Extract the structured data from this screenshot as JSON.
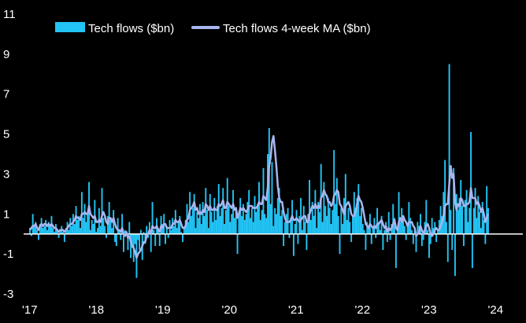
{
  "chart_data": {
    "type": "bar",
    "series": [
      {
        "name": "Tech flows ($bn)",
        "color": "#22C4F5",
        "style": "bars"
      },
      {
        "name": "Tech flows 4-week MA ($bn)",
        "color": "#A8B6F0",
        "style": "line"
      }
    ],
    "x_ticks": [
      "'17",
      "'18",
      "'19",
      "'20",
      "'21",
      "'22",
      "'23",
      "'24"
    ],
    "x_range": [
      2017.0,
      2024.1
    ],
    "y_ticks": [
      11,
      9,
      7,
      5,
      3,
      1,
      -1,
      -3
    ],
    "ylim": [
      -3,
      11
    ],
    "legend_position": "top-left",
    "zero_line": true,
    "bar_values": [
      0.3,
      -0.1,
      1.0,
      0.4,
      0.6,
      0.2,
      -0.3,
      0.5,
      0.8,
      0.3,
      0.4,
      0.7,
      0.2,
      0.6,
      0.4,
      0.9,
      0.3,
      0.1,
      0.5,
      0.2,
      -0.2,
      0.2,
      0.4,
      0.1,
      -0.4,
      0.3,
      0.6,
      0.2,
      0.8,
      0.4,
      1.0,
      0.5,
      1.4,
      0.7,
      0.9,
      0.3,
      2.1,
      0.8,
      1.5,
      0.6,
      1.0,
      2.6,
      0.2,
      0.7,
      0.5,
      1.7,
      0.1,
      0.3,
      1.3,
      0.4,
      2.3,
      0.8,
      0.4,
      -0.2,
      0.9,
      1.6,
      0.7,
      0.3,
      1.2,
      -0.4,
      -0.6,
      0.8,
      0.2,
      -0.3,
      1.0,
      -0.9,
      0.2,
      -0.1,
      -0.8,
      0.6,
      -1.2,
      -0.7,
      -1.4,
      -0.5,
      -2.2,
      -0.3,
      -0.8,
      0.2,
      -1.3,
      0.1,
      -0.5,
      0.4,
      -0.2,
      0.6,
      -0.9,
      1.6,
      0.2,
      -0.6,
      0.8,
      0.3,
      -0.6,
      0.9,
      0.5,
      1.0,
      -0.5,
      0.4,
      -0.2,
      0.7,
      0.2,
      0.8,
      0.4,
      1.2,
      0.3,
      0.6,
      0.9,
      0.1,
      -0.4,
      0.3,
      0.7,
      1.5,
      0.6,
      2.1,
      0.9,
      1.3,
      2.0,
      0.3,
      1.1,
      0.8,
      1.5,
      0.5,
      1.6,
      0.9,
      2.3,
      1.2,
      0.3,
      2.0,
      1.1,
      0.6,
      1.8,
      0.7,
      1.4,
      2.5,
      0.9,
      1.3,
      2.3,
      0.5,
      1.2,
      2.8,
      1.4,
      0.6,
      1.0,
      2.2,
      0.8,
      1.3,
      -1.0,
      1.1,
      1.8,
      0.9,
      1.5,
      0.7,
      1.0,
      1.6,
      2.2,
      0.8,
      1.3,
      0.6,
      1.9,
      1.1,
      1.5,
      2.6,
      0.7,
      1.2,
      3.3,
      1.0,
      0.8,
      4.0,
      5.3,
      1.5,
      3.6,
      0.4,
      1.3,
      1.0,
      1.8,
      2.3,
      0.9,
      1.2,
      -0.6,
      0.6,
      1.0,
      1.3,
      -0.2,
      0.8,
      1.7,
      -1.1,
      0.5,
      1.2,
      -0.5,
      0.9,
      1.8,
      0.2,
      1.4,
      0.6,
      -0.8,
      1.0,
      2.7,
      0.7,
      1.6,
      0.9,
      2.2,
      0.3,
      1.6,
      1.1,
      3.5,
      0.6,
      2.6,
      1.4,
      0.9,
      1.8,
      1.3,
      0.5,
      1.2,
      4.2,
      1.5,
      2.8,
      0.9,
      -1.0,
      1.3,
      0.5,
      1.8,
      3.0,
      0.7,
      1.3,
      0.6,
      -0.4,
      0.9,
      2.1,
      1.3,
      1.8,
      2.5,
      0.9,
      1.3,
      0.5,
      0.2,
      -0.8,
      0.6,
      0.4,
      1.0,
      -0.5,
      0.3,
      0.8,
      -0.2,
      1.3,
      0.6,
      0.2,
      0.9,
      -0.8,
      0.2,
      0.6,
      -0.4,
      1.1,
      -0.3,
      0.5,
      1.5,
      0.8,
      -1.7,
      0.3,
      2.1,
      0.6,
      1.3,
      0.9,
      0.4,
      -0.3,
      0.5,
      1.6,
      0.8,
      0.2,
      -0.5,
      0.3,
      -0.9,
      0.6,
      0.4,
      1.0,
      -0.6,
      -0.3,
      0.6,
      1.7,
      0.2,
      -1.2,
      -0.5,
      0.8,
      0.3,
      0.6,
      -0.4,
      0.2,
      0.7,
      1.4,
      0.9,
      2.1,
      3.7,
      0.6,
      -1.4,
      8.5,
      1.2,
      -0.8,
      3.3,
      -2.1,
      2.0,
      1.2,
      1.8,
      2.7,
      1.4,
      -0.6,
      1.7,
      2.2,
      0.6,
      1.3,
      5.1,
      -1.7,
      1.3,
      2.3,
      0.8,
      1.9,
      1.1,
      0.3,
      1.6,
      0.7,
      -0.5,
      2.4,
      1.3
    ],
    "ma_values": [
      0.2,
      0.3,
      0.4,
      0.4,
      0.5,
      0.3,
      0.2,
      0.4,
      0.5,
      0.4,
      0.5,
      0.5,
      0.4,
      0.5,
      0.4,
      0.5,
      0.4,
      0.3,
      0.3,
      0.2,
      0.1,
      0.2,
      0.2,
      0.2,
      0.1,
      0.2,
      0.3,
      0.4,
      0.5,
      0.5,
      0.6,
      0.7,
      0.9,
      0.8,
      0.8,
      0.7,
      1.0,
      1.0,
      1.1,
      1.0,
      1.0,
      1.4,
      1.0,
      0.9,
      0.8,
      0.9,
      0.6,
      0.6,
      0.7,
      0.6,
      0.9,
      1.1,
      0.9,
      0.6,
      0.5,
      0.8,
      0.8,
      0.6,
      0.8,
      0.5,
      0.3,
      0.2,
      0.2,
      0.1,
      0.3,
      0.0,
      -0.1,
      0.1,
      -0.2,
      -0.1,
      -0.4,
      -0.6,
      -0.7,
      -0.9,
      -1.2,
      -1.0,
      -0.9,
      -0.8,
      -0.6,
      -0.4,
      -0.4,
      -0.1,
      0.0,
      0.2,
      0.0,
      0.4,
      0.3,
      0.3,
      0.4,
      0.2,
      0.1,
      0.4,
      0.3,
      0.5,
      0.5,
      0.3,
      0.3,
      0.3,
      0.3,
      0.5,
      0.5,
      0.7,
      0.6,
      0.6,
      0.7,
      0.5,
      0.3,
      0.3,
      0.4,
      0.7,
      0.8,
      1.2,
      1.3,
      1.4,
      1.6,
      1.2,
      1.3,
      1.0,
      1.1,
      1.0,
      1.2,
      1.1,
      1.5,
      1.4,
      1.2,
      1.4,
      1.2,
      1.2,
      1.3,
      1.2,
      1.2,
      1.5,
      1.4,
      1.5,
      1.7,
      1.3,
      1.3,
      1.6,
      1.5,
      1.4,
      1.3,
      1.5,
      1.2,
      1.3,
      0.8,
      1.0,
      1.3,
      1.2,
      1.3,
      1.2,
      1.1,
      1.2,
      1.4,
      1.4,
      1.4,
      1.3,
      1.3,
      1.3,
      1.4,
      1.6,
      1.5,
      1.5,
      1.9,
      1.8,
      1.7,
      2.3,
      3.4,
      3.8,
      4.6,
      4.9,
      4.2,
      3.4,
      2.4,
      1.8,
      1.6,
      1.6,
      1.1,
      0.8,
      0.6,
      0.6,
      0.6,
      0.7,
      0.9,
      0.7,
      0.7,
      0.8,
      0.7,
      0.6,
      0.7,
      0.8,
      0.9,
      0.9,
      0.6,
      0.6,
      1.0,
      1.2,
      1.4,
      1.3,
      1.5,
      1.3,
      1.4,
      1.3,
      1.8,
      1.9,
      2.2,
      2.0,
      1.9,
      1.6,
      1.6,
      1.4,
      1.5,
      1.9,
      2.0,
      2.2,
      2.1,
      1.5,
      1.4,
      1.2,
      1.0,
      1.4,
      1.5,
      1.6,
      1.4,
      1.0,
      0.9,
      0.9,
      1.1,
      1.5,
      1.9,
      1.7,
      1.6,
      1.3,
      0.9,
      0.5,
      0.4,
      0.3,
      0.5,
      0.4,
      0.3,
      0.4,
      0.3,
      0.5,
      0.5,
      0.6,
      0.7,
      0.5,
      0.3,
      0.4,
      0.1,
      0.3,
      0.2,
      0.3,
      0.5,
      0.7,
      0.3,
      0.2,
      0.6,
      0.8,
      0.6,
      0.9,
      0.7,
      0.6,
      0.4,
      0.6,
      0.6,
      0.6,
      0.4,
      0.3,
      -0.1,
      0.0,
      0.1,
      0.4,
      0.2,
      0.0,
      0.2,
      0.4,
      0.5,
      0.3,
      0.0,
      -0.1,
      0.0,
      0.2,
      0.3,
      0.2,
      0.2,
      0.4,
      0.6,
      0.9,
      1.4,
      1.5,
      1.5,
      2.5,
      3.4,
      2.8,
      3.0,
      1.6,
      1.2,
      1.5,
      1.4,
      1.8,
      1.7,
      1.4,
      1.4,
      1.5,
      1.5,
      1.6,
      2.3,
      1.8,
      1.8,
      1.8,
      1.5,
      1.6,
      1.4,
      1.1,
      1.3,
      1.0,
      0.6,
      0.8,
      1.0
    ]
  }
}
